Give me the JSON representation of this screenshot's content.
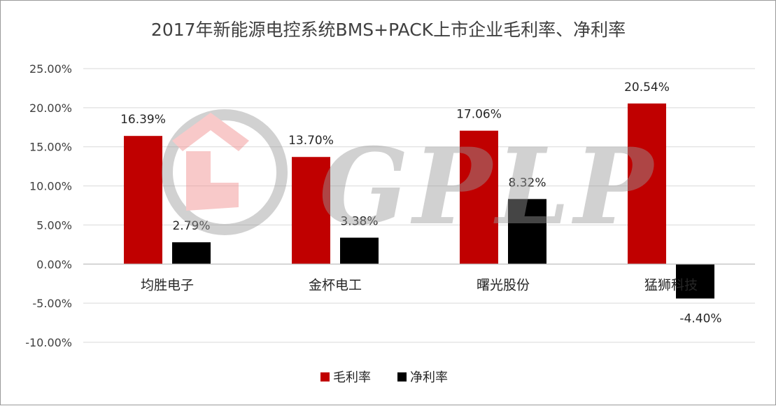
{
  "chart_data": {
    "type": "bar",
    "title": "2017年新能源电控系统BMS+PACK上市企业毛利率、净利率",
    "categories": [
      "均胜电子",
      "金杯电工",
      "曙光股份",
      "猛狮科技"
    ],
    "series": [
      {
        "name": "毛利率",
        "color": "#c00000",
        "values": [
          16.39,
          13.7,
          17.06,
          20.54
        ],
        "labels": [
          "16.39%",
          "13.70%",
          "17.06%",
          "20.54%"
        ]
      },
      {
        "name": "净利率",
        "color": "#000000",
        "values": [
          2.79,
          3.38,
          8.32,
          -4.4
        ],
        "labels": [
          "2.79%",
          "3.38%",
          "8.32%",
          "-4.40%"
        ]
      }
    ],
    "y_ticks": [
      25,
      20,
      15,
      10,
      5,
      0,
      -5,
      -10
    ],
    "y_tick_labels": [
      "25.00%",
      "20.00%",
      "15.00%",
      "10.00%",
      "5.00%",
      "0.00%",
      "-5.00%",
      "-10.00%"
    ],
    "ylim": [
      -10,
      25
    ],
    "grid": true,
    "legend_position": "bottom",
    "watermark": "GPLP"
  }
}
